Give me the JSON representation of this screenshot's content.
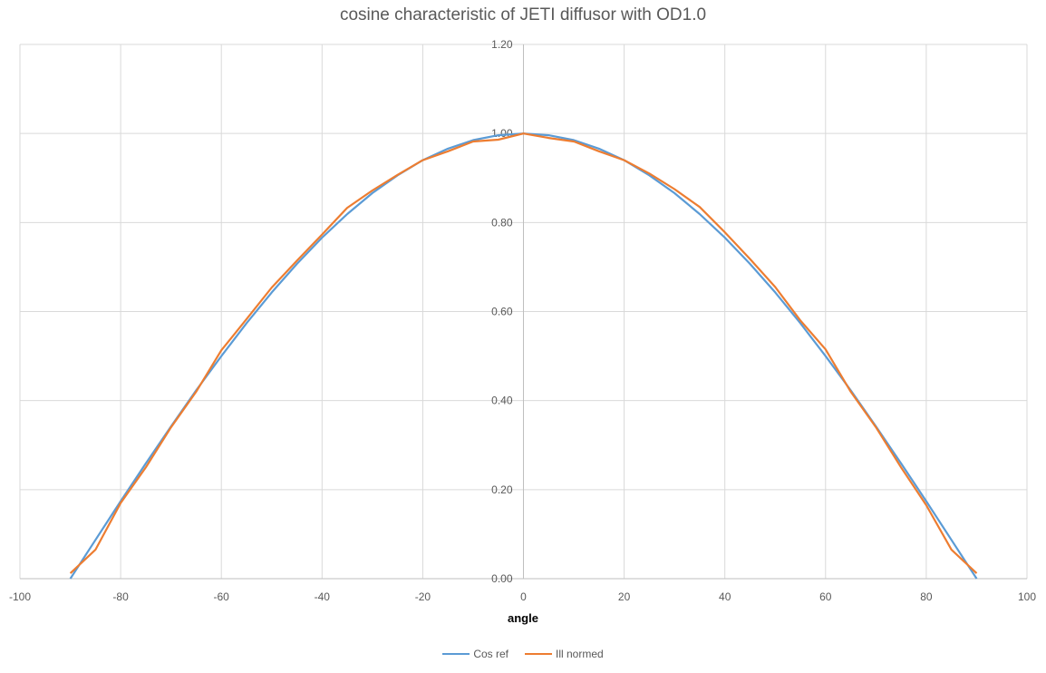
{
  "chart_data": {
    "type": "line",
    "title": "cosine characteristic of JETI diffusor with OD1.0",
    "xlabel": "angle",
    "ylabel": "",
    "xlim": [
      -100,
      100
    ],
    "ylim": [
      0,
      1.2
    ],
    "x_ticks": [
      "-100",
      "-80",
      "-60",
      "-40",
      "-20",
      "0",
      "20",
      "40",
      "60",
      "80",
      "100"
    ],
    "y_ticks": [
      "0.00",
      "0.20",
      "0.40",
      "0.60",
      "0.80",
      "1.00",
      "1.20"
    ],
    "grid": true,
    "legend_position": "bottom",
    "x": [
      -90,
      -85,
      -80,
      -75,
      -70,
      -65,
      -60,
      -55,
      -50,
      -45,
      -40,
      -35,
      -30,
      -25,
      -20,
      -15,
      -10,
      -5,
      0,
      5,
      10,
      15,
      20,
      25,
      30,
      35,
      40,
      45,
      50,
      55,
      60,
      65,
      70,
      75,
      80,
      85,
      90
    ],
    "series": [
      {
        "name": "Cos ref",
        "color": "#5B9BD5",
        "values": [
          0.0,
          0.087,
          0.174,
          0.259,
          0.342,
          0.423,
          0.5,
          0.574,
          0.643,
          0.707,
          0.766,
          0.819,
          0.866,
          0.906,
          0.94,
          0.966,
          0.985,
          0.996,
          1.0,
          0.996,
          0.985,
          0.966,
          0.94,
          0.906,
          0.866,
          0.819,
          0.766,
          0.707,
          0.643,
          0.574,
          0.5,
          0.423,
          0.342,
          0.259,
          0.174,
          0.087,
          0.0
        ]
      },
      {
        "name": "Ill normed",
        "color": "#ED7D31",
        "values": [
          0.012,
          0.065,
          0.17,
          0.25,
          0.34,
          0.42,
          0.513,
          0.583,
          0.654,
          0.714,
          0.773,
          0.833,
          0.872,
          0.907,
          0.94,
          0.96,
          0.982,
          0.986,
          1.0,
          0.99,
          0.982,
          0.96,
          0.94,
          0.91,
          0.875,
          0.835,
          0.778,
          0.718,
          0.655,
          0.58,
          0.515,
          0.42,
          0.34,
          0.25,
          0.165,
          0.065,
          0.012
        ]
      }
    ]
  },
  "colors": {
    "grid": "#D9D9D9",
    "axis": "#BFBFBF",
    "tick_text": "#595959"
  }
}
